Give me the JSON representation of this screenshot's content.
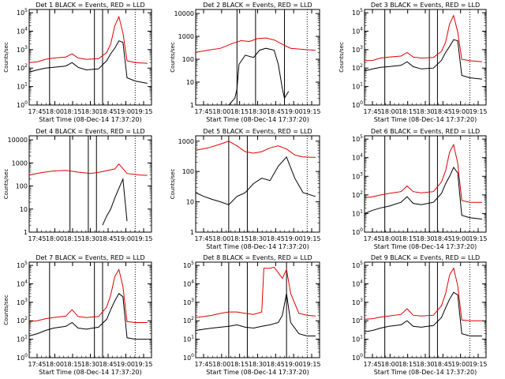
{
  "colors": {
    "events": "#000000",
    "lld": "#e00000",
    "background": "#ffffff",
    "axis": "#000000"
  },
  "chart_data": [
    {
      "type": "line",
      "title": "Det  1 BLACK = Events, RED = LLD",
      "xlabel": "Start Time (08-Dec-14 17:37:20)",
      "ylabel": "Counts/sec",
      "yscale": "log",
      "ylim": [
        1,
        150000
      ],
      "xlim": [
        0,
        3000
      ],
      "xticks": [
        "17:45",
        "18:00",
        "18:15",
        "18:30",
        "18:45",
        "19:00",
        "19:15"
      ],
      "yticks": [
        "10^0",
        "10^1",
        "10^2",
        "10^3",
        "10^4",
        "10^5"
      ],
      "markers_solid": [
        500,
        1600,
        1800
      ],
      "markers_dotted": [
        2600
      ],
      "series": [
        {
          "x": [
            0,
            200,
            400,
            600,
            900,
            1050,
            1200,
            1400,
            1700,
            1900,
            2000,
            2100,
            2200,
            2300,
            2400,
            2600,
            2900
          ],
          "values": [
            60,
            80,
            100,
            110,
            130,
            200,
            110,
            80,
            90,
            250,
            600,
            1200,
            3000,
            2500,
            30,
            20,
            15
          ]
        },
        {
          "x": [
            0,
            200,
            400,
            600,
            900,
            1050,
            1200,
            1400,
            1700,
            1900,
            2000,
            2100,
            2200,
            2300,
            2400,
            2600,
            2900
          ],
          "values": [
            200,
            220,
            300,
            350,
            400,
            600,
            350,
            300,
            320,
            700,
            2000,
            20000,
            60000,
            8000,
            250,
            200,
            180
          ]
        }
      ]
    },
    {
      "type": "line",
      "title": "Det  2 BLACK = Events, RED = LLD",
      "xlabel": "Start Time (08-Dec-14 17:37:20)",
      "ylabel": "Counts/sec",
      "yscale": "linear",
      "ylim": [
        1,
        15000
      ],
      "xlim": [
        0,
        3000
      ],
      "xticks": [
        "17:45",
        "18:00",
        "18:15",
        "18:30",
        "18:45",
        "19:00",
        "19:15"
      ],
      "yticks": [
        "1",
        "10",
        "100",
        "1000",
        "10000"
      ],
      "markers_solid": [
        1000,
        1450,
        2150
      ],
      "markers_dotted": [
        2700
      ],
      "series": [
        {
          "x": [
            800,
            950,
            1000,
            1050,
            1200,
            1400,
            1550,
            1700,
            1900,
            2000,
            2100,
            2150,
            2250
          ],
          "values": [
            1,
            2,
            5,
            60,
            150,
            120,
            250,
            300,
            250,
            60,
            5,
            2,
            4
          ]
        },
        {
          "x": [
            0,
            300,
            600,
            900,
            1100,
            1300,
            1500,
            1700,
            1900,
            2100,
            2300,
            2500,
            2700,
            2900
          ],
          "values": [
            200,
            250,
            300,
            500,
            650,
            600,
            800,
            850,
            700,
            450,
            300,
            280,
            260,
            250
          ]
        }
      ]
    },
    {
      "type": "line",
      "title": "Det  3 BLACK = Events, RED = LLD",
      "xlabel": "Start Time (08-Dec-14 17:37:20)",
      "ylabel": "Counts/sec",
      "yscale": "log",
      "ylim": [
        1,
        150000
      ],
      "xlim": [
        0,
        3000
      ],
      "xticks": [
        "17:45",
        "18:00",
        "18:15",
        "18:30",
        "18:45",
        "19:00",
        "19:15"
      ],
      "yticks": [
        "10^0",
        "10^1",
        "10^2",
        "10^3",
        "10^4",
        "10^5"
      ],
      "markers_solid": [
        500,
        1600,
        1800
      ],
      "markers_dotted": [
        2600
      ],
      "series": [
        {
          "x": [
            0,
            200,
            400,
            600,
            900,
            1050,
            1200,
            1400,
            1700,
            1900,
            2000,
            2100,
            2200,
            2300,
            2400,
            2600,
            2900
          ],
          "values": [
            70,
            90,
            110,
            120,
            140,
            220,
            120,
            90,
            100,
            260,
            700,
            1500,
            3500,
            3000,
            40,
            30,
            25
          ]
        },
        {
          "x": [
            0,
            200,
            400,
            600,
            900,
            1050,
            1200,
            1400,
            1700,
            1900,
            2000,
            2100,
            2200,
            2300,
            2400,
            2600,
            2900
          ],
          "values": [
            250,
            260,
            350,
            400,
            450,
            700,
            400,
            350,
            380,
            800,
            2500,
            25000,
            70000,
            9000,
            300,
            250,
            220
          ]
        }
      ]
    },
    {
      "type": "line",
      "title": "Det  4 BLACK = Events, RED = LLD",
      "xlabel": "",
      "ylabel": "Counts/sec",
      "yscale": "linear",
      "ylim": [
        1,
        15000
      ],
      "xlim": [
        0,
        3000
      ],
      "xticks": [
        "17:45",
        "18:00",
        "18:15",
        "18:30",
        "18:45",
        "19:00",
        "19:15"
      ],
      "yticks": [
        "1",
        "10",
        "100",
        "1000",
        "10000"
      ],
      "markers_solid": [
        1000,
        1450,
        1650
      ],
      "markers_dotted": [
        2600
      ],
      "series": [
        {
          "x": [
            1800,
            1900,
            2000,
            2100,
            2200,
            2300,
            2400
          ],
          "values": [
            2,
            5,
            10,
            30,
            80,
            200,
            3
          ]
        },
        {
          "x": [
            0,
            300,
            600,
            900,
            1200,
            1500,
            1800,
            2100,
            2200,
            2400,
            2700,
            2900
          ],
          "values": [
            300,
            380,
            450,
            480,
            400,
            350,
            420,
            550,
            900,
            350,
            300,
            290
          ]
        }
      ]
    },
    {
      "type": "line",
      "title": "Det  5 BLACK = Events, RED = LLD",
      "xlabel": "Start Time (08-Dec-14 17:37:20)",
      "ylabel": "Counts/sec",
      "yscale": "linear",
      "ylim": [
        1,
        1500
      ],
      "xlim": [
        0,
        3000
      ],
      "xticks": [
        "17:45",
        "18:00",
        "18:15",
        "18:30",
        "18:45",
        "19:00",
        "19:15"
      ],
      "yticks": [
        "1",
        "10",
        "100",
        "1000"
      ],
      "markers_solid": [
        800,
        1250
      ],
      "markers_dotted": [
        2700
      ],
      "series": [
        {
          "x": [
            0,
            200,
            400,
            600,
            800,
            1000,
            1200,
            1400,
            1600,
            1800,
            2000,
            2200,
            2400,
            2600,
            2900
          ],
          "values": [
            20,
            15,
            12,
            10,
            8,
            15,
            20,
            40,
            60,
            50,
            150,
            300,
            60,
            20,
            15
          ]
        },
        {
          "x": [
            0,
            300,
            600,
            800,
            1000,
            1200,
            1400,
            1600,
            1800,
            2000,
            2200,
            2400,
            2600,
            2900
          ],
          "values": [
            500,
            600,
            800,
            1000,
            700,
            450,
            400,
            450,
            600,
            700,
            550,
            350,
            300,
            290
          ]
        }
      ]
    },
    {
      "type": "line",
      "title": "Det  6 BLACK = Events, RED = LLD",
      "xlabel": "Start Time (08-Dec-14 17:37:20)",
      "ylabel": "",
      "yscale": "log",
      "ylim": [
        1,
        150000
      ],
      "xlim": [
        0,
        3000
      ],
      "xticks": [
        "17:45",
        "18:00",
        "18:15",
        "18:30",
        "18:45",
        "19:00",
        "19:15"
      ],
      "yticks": [
        "10^0",
        "10^1",
        "10^2",
        "10^3",
        "10^4",
        "10^5"
      ],
      "markers_solid": [
        500,
        1600,
        1800
      ],
      "markers_dotted": [
        2600
      ],
      "series": [
        {
          "x": [
            0,
            200,
            400,
            600,
            900,
            1050,
            1200,
            1400,
            1700,
            1900,
            2000,
            2100,
            2200,
            2300,
            2400,
            2600,
            2900
          ],
          "values": [
            10,
            15,
            20,
            25,
            40,
            80,
            35,
            30,
            40,
            120,
            400,
            1000,
            3000,
            1500,
            8,
            6,
            5
          ]
        },
        {
          "x": [
            0,
            200,
            400,
            600,
            900,
            1050,
            1200,
            1400,
            1700,
            1900,
            2000,
            2100,
            2200,
            2300,
            2400,
            2600,
            2900
          ],
          "values": [
            70,
            80,
            100,
            120,
            150,
            300,
            150,
            130,
            150,
            500,
            2000,
            20000,
            50000,
            5000,
            50,
            40,
            40
          ]
        }
      ]
    },
    {
      "type": "line",
      "title": "Det  7 BLACK = Events, RED = LLD",
      "xlabel": "Start Time (08-Dec-14 17:37:20)",
      "ylabel": "Counts/sec",
      "yscale": "log",
      "ylim": [
        1,
        150000
      ],
      "xlim": [
        0,
        3000
      ],
      "xticks": [
        "17:45",
        "18:00",
        "18:15",
        "18:30",
        "18:45",
        "19:00",
        "19:15"
      ],
      "yticks": [
        "10^0",
        "10^1",
        "10^2",
        "10^3",
        "10^4",
        "10^5"
      ],
      "markers_solid": [
        500,
        1600,
        1800
      ],
      "markers_dotted": [
        2600
      ],
      "series": [
        {
          "x": [
            0,
            200,
            400,
            600,
            900,
            1050,
            1200,
            1400,
            1700,
            1900,
            2000,
            2100,
            2200,
            2300,
            2400,
            2600,
            2900
          ],
          "values": [
            15,
            20,
            30,
            40,
            50,
            80,
            40,
            35,
            45,
            120,
            400,
            1200,
            3000,
            2000,
            12,
            10,
            10
          ]
        },
        {
          "x": [
            0,
            200,
            400,
            600,
            900,
            1050,
            1200,
            1400,
            1700,
            1900,
            2000,
            2100,
            2200,
            2300,
            2400,
            2600,
            2900
          ],
          "values": [
            90,
            100,
            130,
            150,
            180,
            400,
            170,
            150,
            170,
            550,
            2500,
            25000,
            60000,
            7000,
            90,
            80,
            80
          ]
        }
      ]
    },
    {
      "type": "line",
      "title": "Det  8 BLACK = Events, RED = LLD",
      "xlabel": "Start Time (08-Dec-14 17:37:20)",
      "ylabel": "",
      "yscale": "log",
      "ylim": [
        1,
        150000
      ],
      "xlim": [
        0,
        3000
      ],
      "xticks": [
        "17:45",
        "18:00",
        "18:15",
        "18:30",
        "18:45",
        "19:00",
        "19:15"
      ],
      "yticks": [
        "10^0",
        "10^1",
        "10^2",
        "10^3",
        "10^4",
        "10^5"
      ],
      "markers_solid": [
        800,
        1250,
        2200
      ],
      "markers_dotted": [
        2700
      ],
      "series": [
        {
          "x": [
            0,
            200,
            400,
            600,
            800,
            1000,
            1200,
            1400,
            1600,
            1800,
            2000,
            2100,
            2200,
            2300,
            2500,
            2700,
            2900
          ],
          "values": [
            30,
            35,
            40,
            45,
            50,
            60,
            45,
            40,
            50,
            60,
            80,
            200,
            3000,
            80,
            20,
            15,
            15
          ]
        },
        {
          "x": [
            0,
            200,
            400,
            600,
            800,
            1000,
            1200,
            1400,
            1600,
            1650,
            1800,
            1900,
            2000,
            2100,
            2200,
            2300,
            2500,
            2700,
            2900
          ],
          "values": [
            150,
            170,
            200,
            250,
            300,
            300,
            250,
            220,
            300,
            70000,
            70000,
            80000,
            40000,
            20000,
            60000,
            3000,
            250,
            200,
            180
          ]
        }
      ]
    },
    {
      "type": "line",
      "title": "Det  9 BLACK = Events, RED = LLD",
      "xlabel": "Start Time (08-Dec-14 17:37:20)",
      "ylabel": "",
      "yscale": "log",
      "ylim": [
        1,
        150000
      ],
      "xlim": [
        0,
        3000
      ],
      "xticks": [
        "17:45",
        "18:00",
        "18:15",
        "18:30",
        "18:45",
        "19:00",
        "19:15"
      ],
      "yticks": [
        "10^0",
        "10^1",
        "10^2",
        "10^3",
        "10^4",
        "10^5"
      ],
      "markers_solid": [
        500,
        1600,
        1800
      ],
      "markers_dotted": [
        2600
      ],
      "series": [
        {
          "x": [
            0,
            200,
            400,
            600,
            900,
            1050,
            1200,
            1400,
            1700,
            1900,
            2000,
            2100,
            2200,
            2300,
            2400,
            2600,
            2900
          ],
          "values": [
            25,
            30,
            40,
            50,
            60,
            100,
            50,
            45,
            55,
            150,
            500,
            1500,
            3500,
            2500,
            20,
            15,
            15
          ]
        },
        {
          "x": [
            0,
            200,
            400,
            600,
            900,
            1050,
            1200,
            1400,
            1700,
            1900,
            2000,
            2100,
            2200,
            2300,
            2400,
            2600,
            2900
          ],
          "values": [
            120,
            130,
            160,
            180,
            220,
            450,
            200,
            180,
            200,
            650,
            3000,
            30000,
            70000,
            8000,
            110,
            100,
            100
          ]
        }
      ]
    }
  ]
}
